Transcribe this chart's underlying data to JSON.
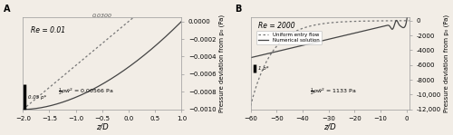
{
  "panel_A": {
    "Re_label": "Re = 0.01",
    "x_lim": [
      -2.0,
      1.0
    ],
    "y_lim": [
      -0.001,
      5e-05
    ],
    "x_ticks": [
      -2.0,
      -1.5,
      -1.0,
      -0.5,
      0.0,
      0.5,
      1.0
    ],
    "y_ticks": [
      0,
      -0.0002,
      -0.0004,
      -0.0006,
      -0.0008,
      -0.001
    ],
    "xlabel": "z/D",
    "ylabel": "Pressure deviation from p₀ (Pa)",
    "half_rho_w2_text": "$\\frac{1}{2}\\rho\\bar{w}^2$ = 0.00566 Pa",
    "scale_bar_label": "0.05 p*",
    "annotation": "0.0300",
    "panel_label": "A",
    "re_x": 0.05,
    "re_y": 0.9
  },
  "panel_B": {
    "Re_label": "Re = 2000",
    "x_lim": [
      -60,
      1
    ],
    "y_lim": [
      -12000,
      500
    ],
    "x_ticks": [
      -60,
      -50,
      -40,
      -30,
      -20,
      -10,
      0
    ],
    "y_ticks": [
      0,
      -2000,
      -4000,
      -6000,
      -8000,
      -10000,
      -12000
    ],
    "y_tick_labels": [
      "0",
      "-2000",
      "-4000",
      "-6000",
      "-8000",
      "-10,000",
      "-12,000"
    ],
    "xlabel": "z/D",
    "ylabel": "Pressure deviation from p₀ (Pa)",
    "half_rho_w2_text": "$\\frac{1}{2}\\rho\\bar{w}^2$ = 1133 Pa",
    "scale_bar_label": "1 p*",
    "panel_label": "B",
    "legend": [
      "Uniform entry flow",
      "Numerical solution"
    ],
    "re_x": 0.05,
    "re_y": 0.95
  },
  "bg_color": "#f2ede6",
  "line_color": "#444444",
  "dot_color": "#777777"
}
